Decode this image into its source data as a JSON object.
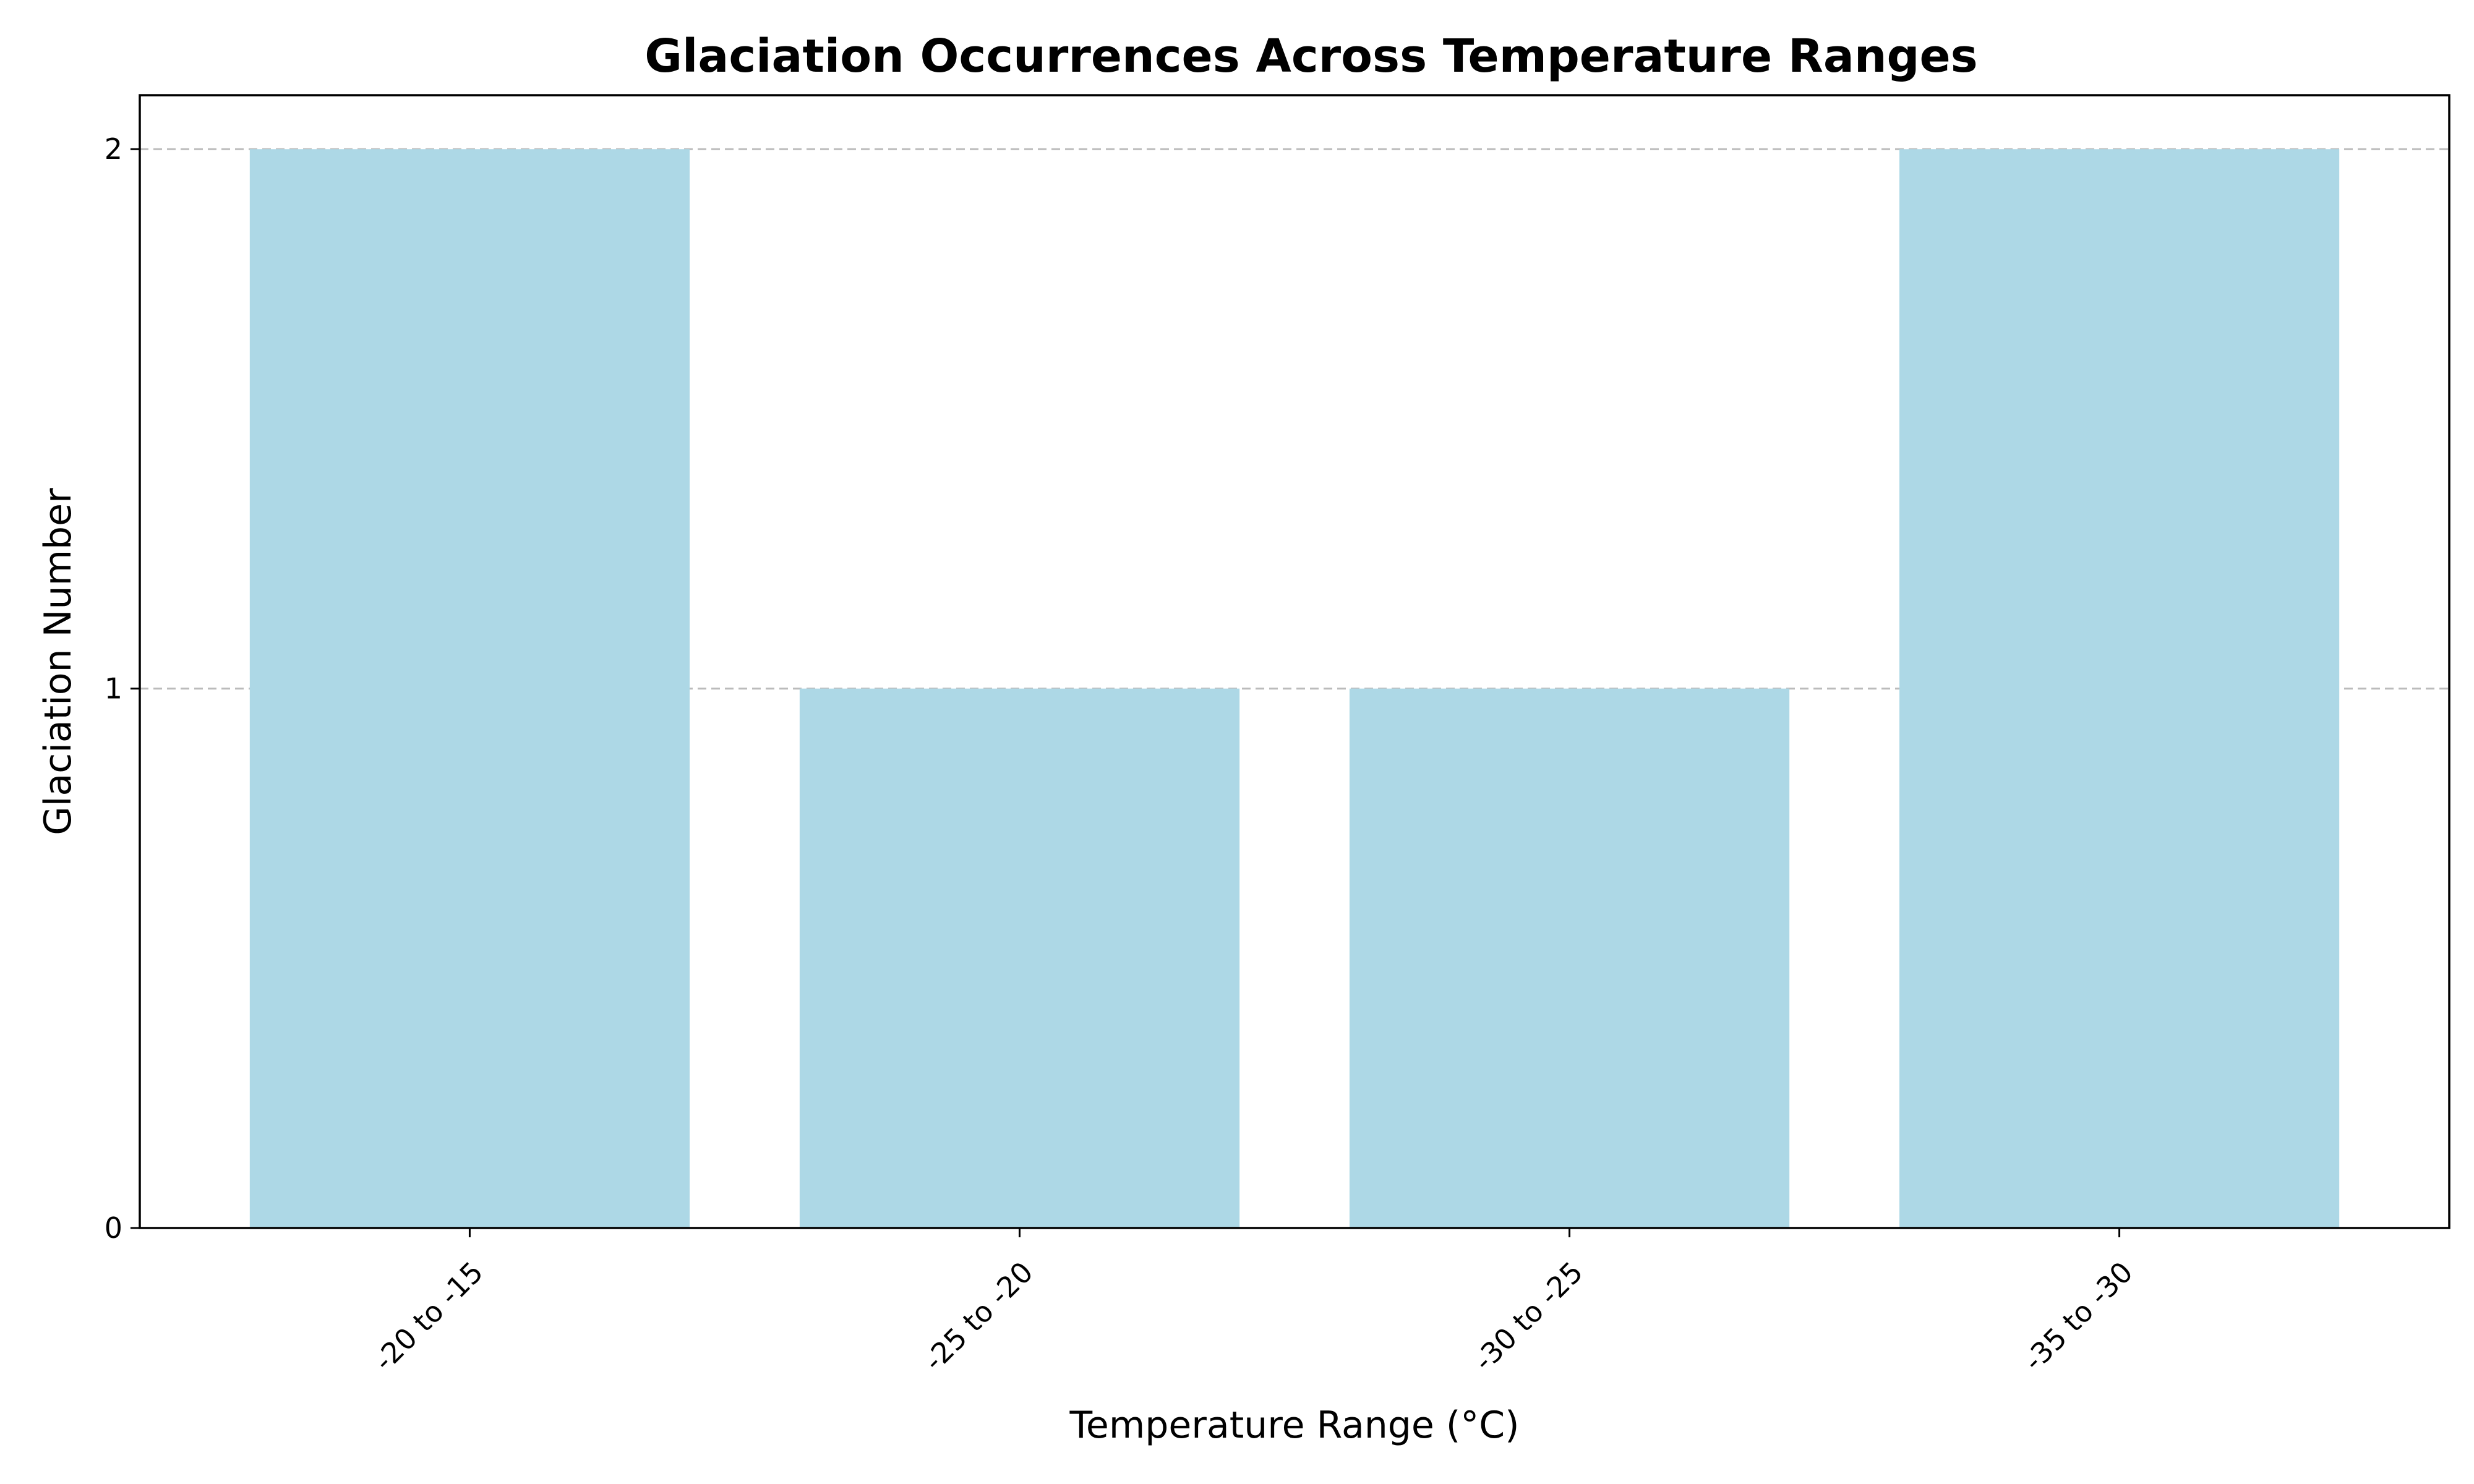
{
  "chart_data": {
    "type": "bar",
    "title": "Glaciation Occurrences Across Temperature Ranges",
    "xlabel": "Temperature Range (°C)",
    "ylabel": "Glaciation Number",
    "categories": [
      "-20 to -15",
      "-25 to -20",
      "-30 to -25",
      "-35 to -30"
    ],
    "values": [
      2,
      1,
      1,
      2
    ],
    "ylim": [
      0,
      2.1
    ],
    "yticks": [
      0,
      1,
      2
    ],
    "grid": "y",
    "legend": "none",
    "bar_color": "#add8e6",
    "grid_color": "#bbbbbb"
  }
}
